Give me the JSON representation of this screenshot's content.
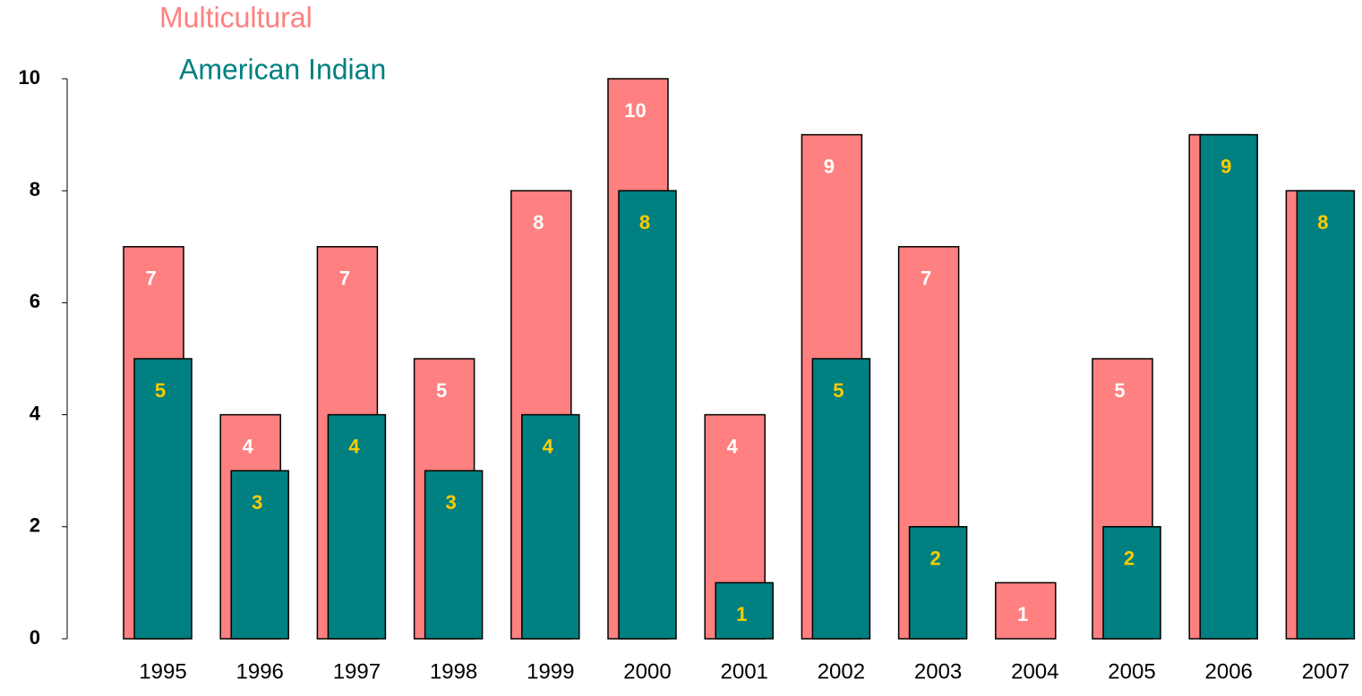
{
  "chart_data": {
    "type": "overlapped-bar",
    "categories": [
      "1995",
      "1996",
      "1997",
      "1998",
      "1999",
      "2000",
      "2001",
      "2002",
      "2003",
      "2004",
      "2005",
      "2006",
      "2007"
    ],
    "series": [
      {
        "name": "Multicultural",
        "color": "#ff8080",
        "label_color": "#ffffff",
        "values": [
          7,
          4,
          7,
          5,
          8,
          10,
          4,
          9,
          7,
          1,
          5,
          9,
          8
        ]
      },
      {
        "name": "American Indian",
        "color": "#008080",
        "label_color": "#ffcc00",
        "values": [
          5,
          3,
          4,
          3,
          4,
          8,
          1,
          5,
          2,
          null,
          2,
          9,
          8
        ]
      }
    ],
    "ylim": [
      0,
      10
    ],
    "yticks": [
      0,
      2,
      4,
      6,
      8,
      10
    ]
  }
}
